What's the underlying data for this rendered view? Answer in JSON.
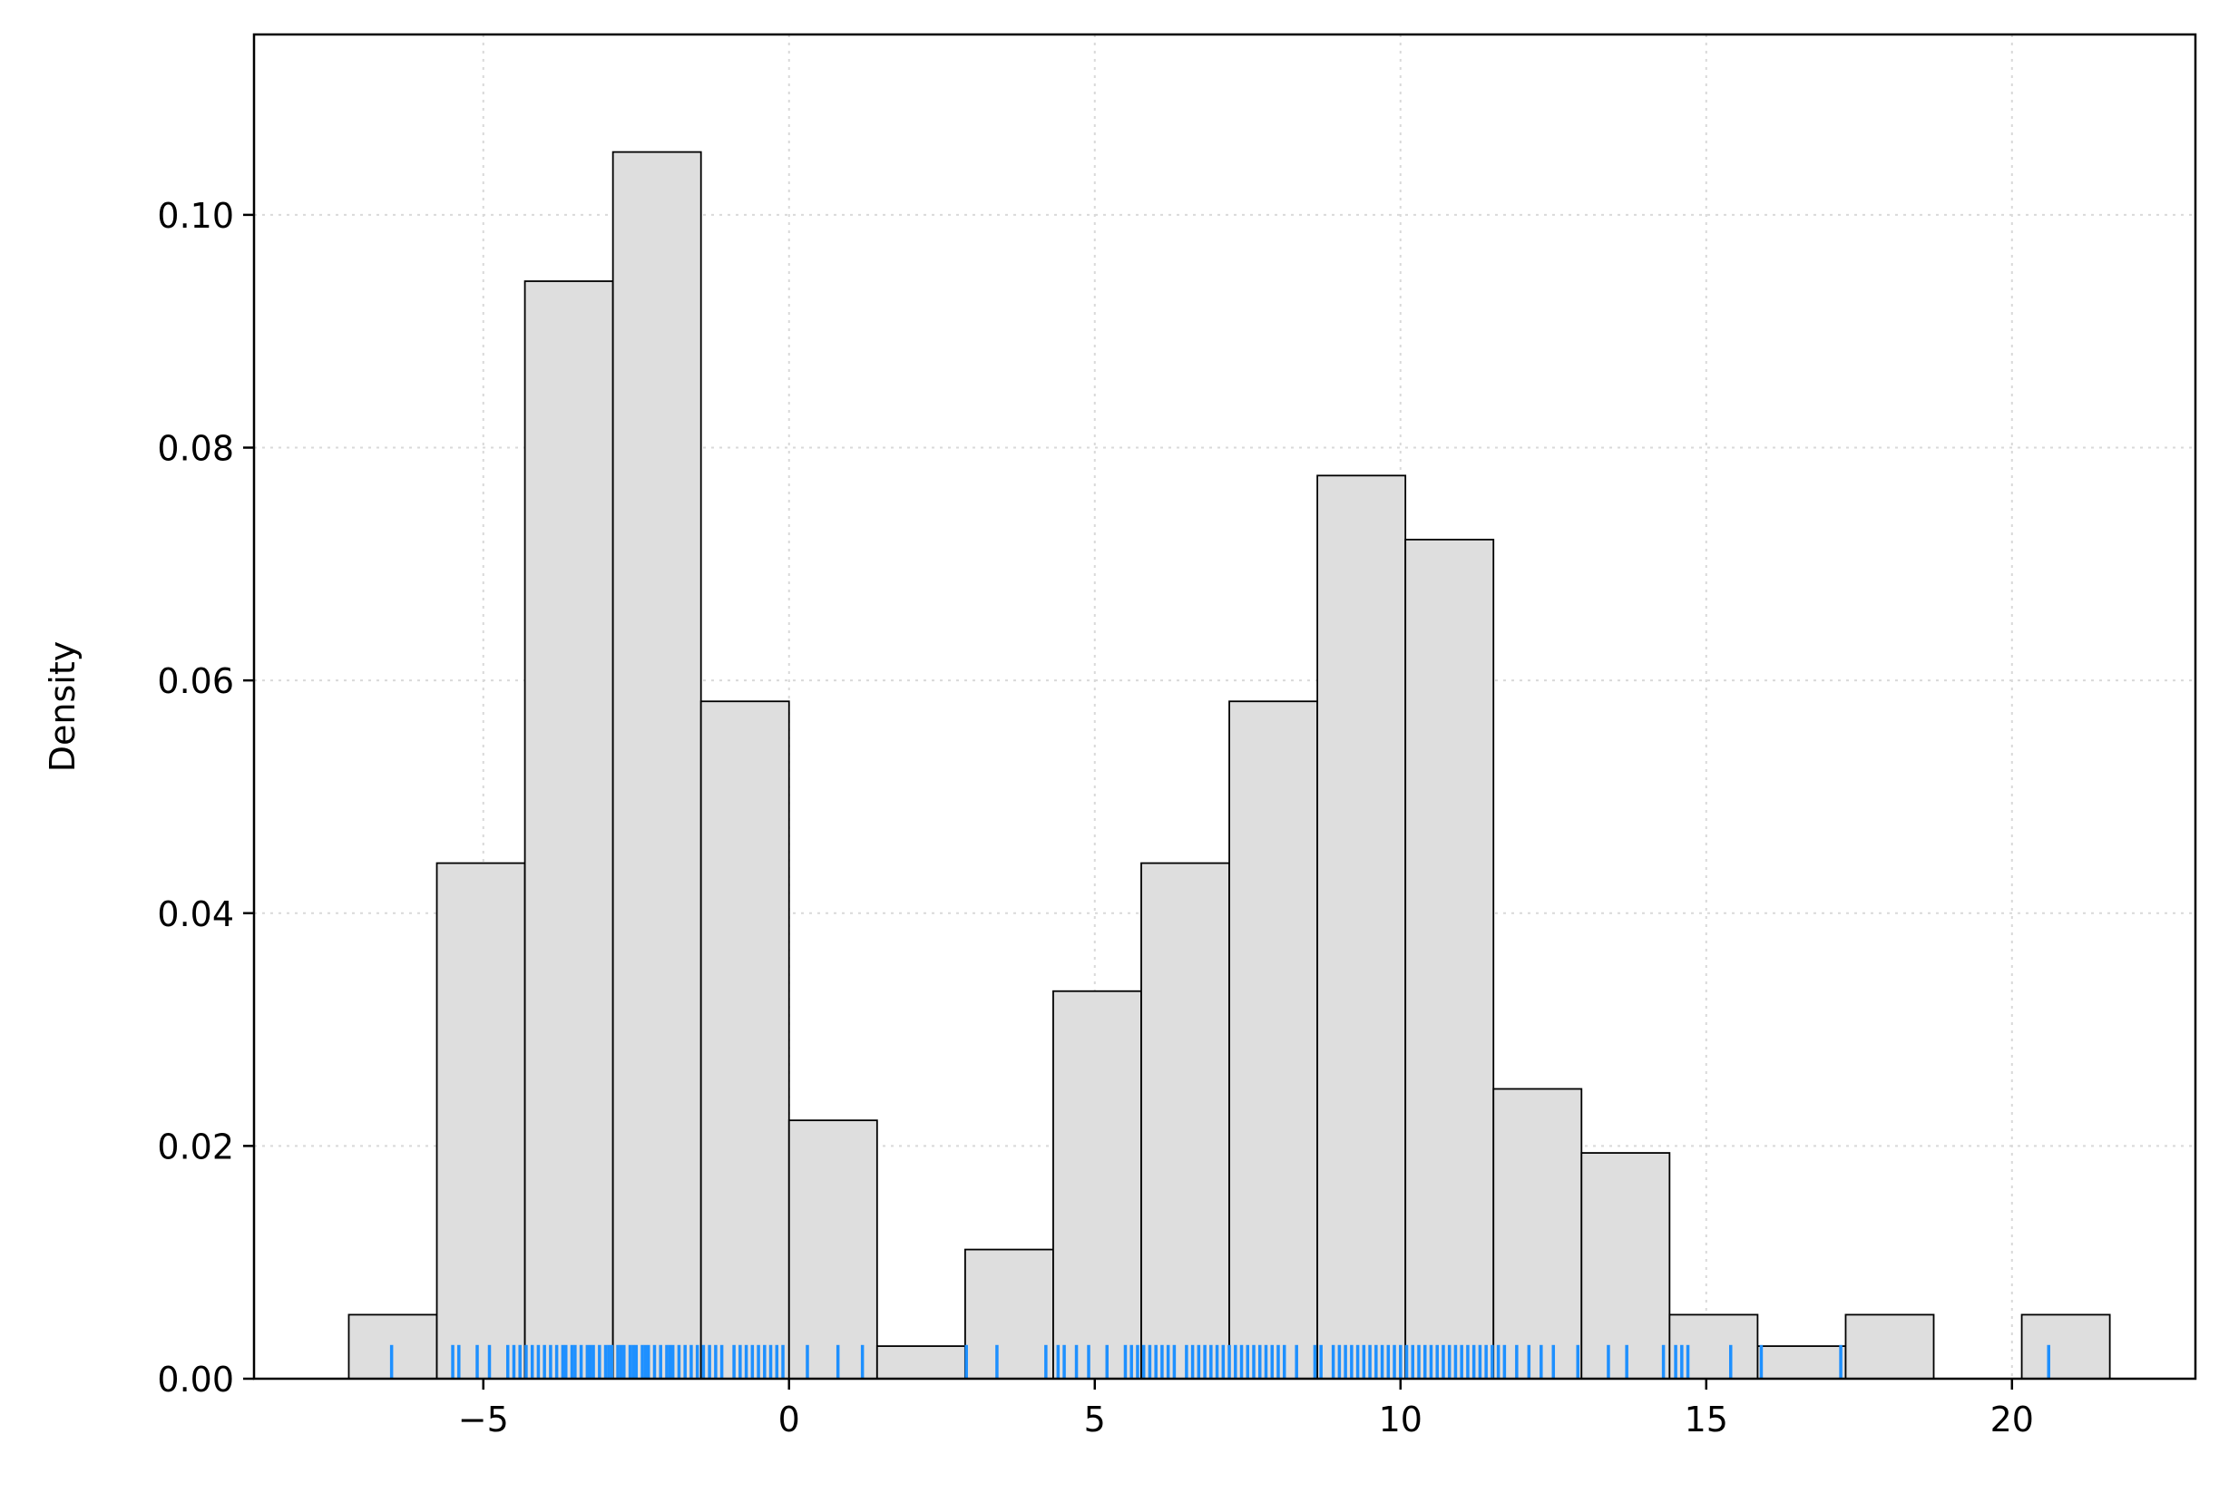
{
  "chart_data": {
    "type": "histogram",
    "title": "",
    "xlabel": "",
    "ylabel": "Density",
    "xlim": [
      -8.75,
      23.0
    ],
    "ylim": [
      0.0,
      0.1155
    ],
    "grid": true,
    "grid_style": "dotted",
    "bar_color": "#dedede",
    "bar_edge_color": "#000000",
    "rug_color": "#1e90ff",
    "x_ticks": [
      {
        "value": -5,
        "label": "−5"
      },
      {
        "value": 0,
        "label": "0"
      },
      {
        "value": 5,
        "label": "5"
      },
      {
        "value": 10,
        "label": "10"
      },
      {
        "value": 15,
        "label": "15"
      },
      {
        "value": 20,
        "label": "20"
      }
    ],
    "y_ticks": [
      {
        "value": 0.0,
        "label": "0.00"
      },
      {
        "value": 0.02,
        "label": "0.02"
      },
      {
        "value": 0.04,
        "label": "0.04"
      },
      {
        "value": 0.06,
        "label": "0.06"
      },
      {
        "value": 0.08,
        "label": "0.08"
      },
      {
        "value": 0.1,
        "label": "0.10"
      }
    ],
    "bins": [
      {
        "start": -7.2,
        "end": -5.76,
        "density": 0.0055
      },
      {
        "start": -5.76,
        "end": -4.32,
        "density": 0.0443
      },
      {
        "start": -4.32,
        "end": -2.88,
        "density": 0.0943
      },
      {
        "start": -2.88,
        "end": -1.44,
        "density": 0.1054
      },
      {
        "start": -1.44,
        "end": 0.0,
        "density": 0.0582
      },
      {
        "start": 0.0,
        "end": 1.44,
        "density": 0.0222
      },
      {
        "start": 1.44,
        "end": 2.88,
        "density": 0.0028
      },
      {
        "start": 2.88,
        "end": 4.32,
        "density": 0.0111
      },
      {
        "start": 4.32,
        "end": 5.76,
        "density": 0.0333
      },
      {
        "start": 5.76,
        "end": 7.2,
        "density": 0.0443
      },
      {
        "start": 7.2,
        "end": 8.64,
        "density": 0.0582
      },
      {
        "start": 8.64,
        "end": 10.08,
        "density": 0.0776
      },
      {
        "start": 10.08,
        "end": 11.52,
        "density": 0.0721
      },
      {
        "start": 11.52,
        "end": 12.96,
        "density": 0.0249
      },
      {
        "start": 12.96,
        "end": 14.4,
        "density": 0.0194
      },
      {
        "start": 14.4,
        "end": 15.84,
        "density": 0.0055
      },
      {
        "start": 15.84,
        "end": 17.28,
        "density": 0.0028
      },
      {
        "start": 17.28,
        "end": 18.72,
        "density": 0.0055
      },
      {
        "start": 18.72,
        "end": 20.16,
        "density": 0.0
      },
      {
        "start": 20.16,
        "end": 21.6,
        "density": 0.0055
      }
    ],
    "rug": [
      -6.5,
      -5.5,
      -5.4,
      -5.1,
      -4.9,
      -4.6,
      -4.5,
      -4.4,
      -4.3,
      -4.2,
      -4.1,
      -4.0,
      -3.9,
      -3.8,
      -3.7,
      -3.65,
      -3.55,
      -3.5,
      -3.4,
      -3.3,
      -3.25,
      -3.2,
      -3.1,
      -3.0,
      -2.95,
      -2.9,
      -2.8,
      -2.75,
      -2.7,
      -2.6,
      -2.55,
      -2.5,
      -2.4,
      -2.35,
      -2.3,
      -2.2,
      -2.1,
      -2.0,
      -1.95,
      -1.9,
      -1.8,
      -1.7,
      -1.6,
      -1.5,
      -1.4,
      -1.3,
      -1.2,
      -1.1,
      -0.9,
      -0.8,
      -0.7,
      -0.6,
      -0.5,
      -0.4,
      -0.3,
      -0.2,
      -0.1,
      0.3,
      0.8,
      1.2,
      2.9,
      3.4,
      4.2,
      4.4,
      4.5,
      4.7,
      4.9,
      5.2,
      5.5,
      5.6,
      5.7,
      5.8,
      5.9,
      6.0,
      6.1,
      6.2,
      6.3,
      6.5,
      6.6,
      6.7,
      6.8,
      6.9,
      7.0,
      7.1,
      7.2,
      7.3,
      7.4,
      7.5,
      7.6,
      7.7,
      7.8,
      7.9,
      8.0,
      8.1,
      8.3,
      8.6,
      8.7,
      8.9,
      9.0,
      9.1,
      9.2,
      9.3,
      9.4,
      9.5,
      9.6,
      9.7,
      9.8,
      9.9,
      10.0,
      10.1,
      10.2,
      10.3,
      10.4,
      10.5,
      10.6,
      10.7,
      10.8,
      10.9,
      11.0,
      11.1,
      11.2,
      11.3,
      11.4,
      11.5,
      11.6,
      11.7,
      11.9,
      12.1,
      12.3,
      12.5,
      12.9,
      13.4,
      13.7,
      14.3,
      14.5,
      14.6,
      14.7,
      15.4,
      15.9,
      17.2,
      20.6
    ]
  }
}
